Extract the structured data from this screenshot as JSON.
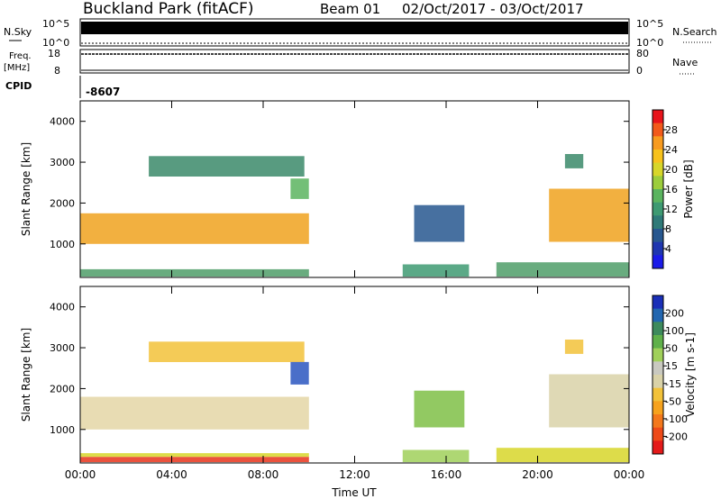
{
  "header": {
    "station": "Buckland Park (fitACF)",
    "beam": "Beam 01",
    "date_range": "02/Oct/2017 - 03/Oct/2017"
  },
  "strips": {
    "nsky": {
      "label": "N.Sky",
      "ticks": [
        "10^5",
        "10^0"
      ],
      "right_label": "N.Search",
      "right_ticks": [
        "10^5",
        "10^0"
      ]
    },
    "freq": {
      "label_line1": "Freq.",
      "label_line2": "[MHz]",
      "ticks": [
        "18",
        "8"
      ],
      "right_label": "Nave",
      "right_ticks": [
        "80",
        "0"
      ]
    },
    "cpid": {
      "label": "CPID",
      "value": "-8607"
    }
  },
  "chart_data": [
    {
      "type": "heatmap",
      "name": "power-panel",
      "ylabel": "Slant Range [km]",
      "xlabel": "",
      "ylim": [
        180,
        4500
      ],
      "y_ticks": [
        1000,
        2000,
        3000,
        4000
      ],
      "colorbar_label": "Power [dB]",
      "colorbar_ticks": [
        "28",
        "24",
        "20",
        "16",
        "12",
        "8",
        "4"
      ],
      "colorbar_colors": [
        "#e8141b",
        "#f25a1b",
        "#f89b1f",
        "#f7c21c",
        "#d7d62a",
        "#9ccd3c",
        "#5bb45f",
        "#3e9a72",
        "#2f7a78",
        "#27578f",
        "#1f36b0",
        "#1b1be8"
      ],
      "regions": [
        {
          "t0": 0.0,
          "t1": 10.0,
          "r0": 200,
          "r1": 380,
          "color": "#4f9e68"
        },
        {
          "t0": 0.0,
          "t1": 10.0,
          "r0": 1000,
          "r1": 1750,
          "color": "#f0a21e"
        },
        {
          "t0": 3.0,
          "t1": 9.8,
          "r0": 2650,
          "r1": 3150,
          "color": "#3b8a6a"
        },
        {
          "t0": 9.2,
          "t1": 10.0,
          "r0": 2100,
          "r1": 2600,
          "color": "#5bb45f"
        },
        {
          "t0": 14.1,
          "t1": 17.0,
          "r0": 200,
          "r1": 500,
          "color": "#3e9a72"
        },
        {
          "t0": 14.6,
          "t1": 16.8,
          "r0": 1050,
          "r1": 1950,
          "color": "#27578f"
        },
        {
          "t0": 18.2,
          "t1": 24.0,
          "r0": 200,
          "r1": 550,
          "color": "#4f9e68"
        },
        {
          "t0": 20.5,
          "t1": 24.0,
          "r0": 1050,
          "r1": 2350,
          "color": "#f0a21e"
        },
        {
          "t0": 21.2,
          "t1": 22.0,
          "r0": 2850,
          "r1": 3200,
          "color": "#3b8a6a"
        }
      ]
    },
    {
      "type": "heatmap",
      "name": "velocity-panel",
      "ylabel": "Slant Range [km]",
      "xlabel": "Time UT",
      "ylim": [
        180,
        4500
      ],
      "y_ticks": [
        1000,
        2000,
        3000,
        4000
      ],
      "x_ticks": [
        "00:00",
        "04:00",
        "08:00",
        "12:00",
        "16:00",
        "20:00",
        "00:00"
      ],
      "colorbar_label": "Velocity [m s-1]",
      "colorbar_ticks": [
        "200",
        "100",
        "50",
        "15",
        "-15",
        "-50",
        "-100",
        "-200"
      ],
      "colorbar_colors": [
        "#1a2fb8",
        "#2266b0",
        "#3d8a5c",
        "#5fb04a",
        "#a0d05a",
        "#c9c9c0",
        "#d9d2a8",
        "#f2c23a",
        "#f6a21d",
        "#f3781c",
        "#ee4a18",
        "#e41a1a"
      ],
      "regions": [
        {
          "t0": 0.0,
          "t1": 10.0,
          "r0": 200,
          "r1": 330,
          "color": "#e8341b"
        },
        {
          "t0": 0.0,
          "t1": 10.0,
          "r0": 330,
          "r1": 420,
          "color": "#d7d62a"
        },
        {
          "t0": 0.0,
          "t1": 10.0,
          "r0": 1000,
          "r1": 1800,
          "color": "#e4d6a6"
        },
        {
          "t0": 3.0,
          "t1": 9.8,
          "r0": 2650,
          "r1": 3150,
          "color": "#f2c23a"
        },
        {
          "t0": 9.2,
          "t1": 10.0,
          "r0": 2100,
          "r1": 2650,
          "color": "#2a56c0"
        },
        {
          "t0": 14.1,
          "t1": 17.0,
          "r0": 200,
          "r1": 500,
          "color": "#a0d05a"
        },
        {
          "t0": 14.6,
          "t1": 16.8,
          "r0": 1050,
          "r1": 1950,
          "color": "#7fc047"
        },
        {
          "t0": 18.2,
          "t1": 24.0,
          "r0": 200,
          "r1": 550,
          "color": "#d7d62a"
        },
        {
          "t0": 20.5,
          "t1": 24.0,
          "r0": 1050,
          "r1": 2350,
          "color": "#d9d2a8"
        },
        {
          "t0": 21.2,
          "t1": 22.0,
          "r0": 2850,
          "r1": 3200,
          "color": "#f2c23a"
        }
      ]
    }
  ]
}
